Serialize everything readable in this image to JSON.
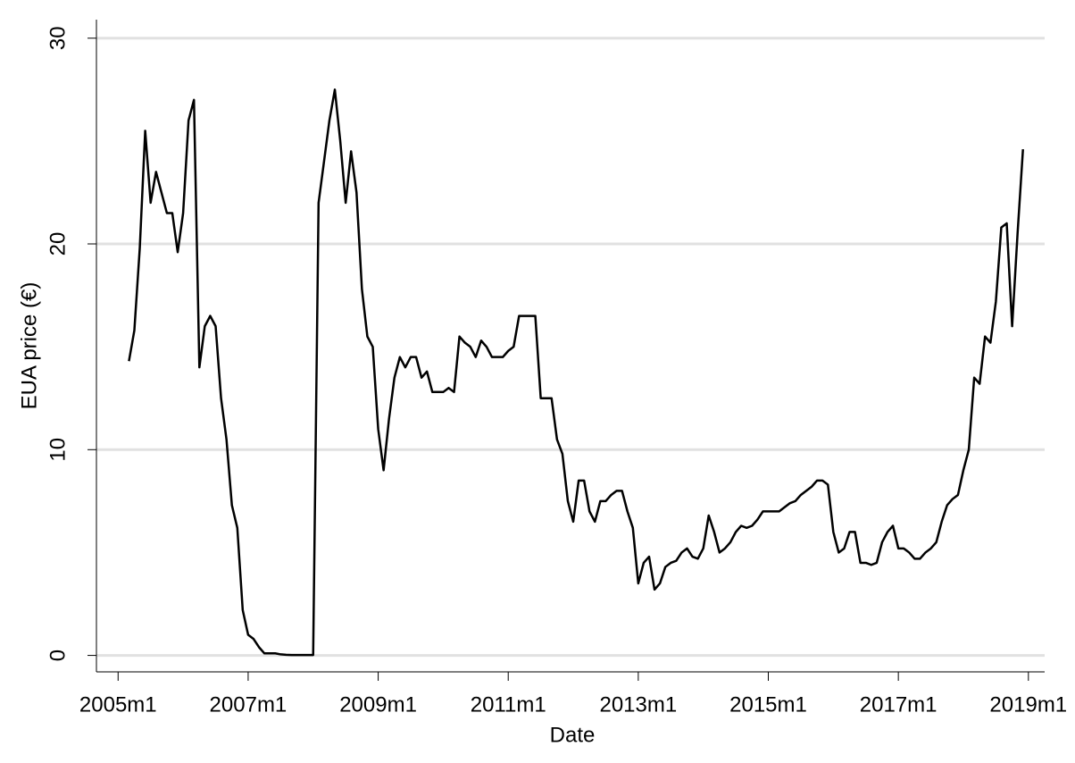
{
  "chart_data": {
    "type": "line",
    "x_label": "Date",
    "y_label": "EUA price (€)",
    "x": [
      542,
      543,
      544,
      545,
      546,
      547,
      548,
      549,
      550,
      551,
      552,
      553,
      554,
      555,
      556,
      557,
      558,
      559,
      560,
      561,
      562,
      563,
      564,
      565,
      566,
      567,
      568,
      569,
      570,
      571,
      572,
      573,
      574,
      575,
      576,
      577,
      578,
      579,
      580,
      581,
      582,
      583,
      584,
      585,
      586,
      587,
      588,
      589,
      590,
      591,
      592,
      593,
      594,
      595,
      596,
      597,
      598,
      599,
      600,
      601,
      602,
      603,
      604,
      605,
      606,
      607,
      608,
      609,
      610,
      611,
      612,
      613,
      614,
      615,
      616,
      617,
      618,
      619,
      620,
      621,
      622,
      623,
      624,
      625,
      626,
      627,
      628,
      629,
      630,
      631,
      632,
      633,
      634,
      635,
      636,
      637,
      638,
      639,
      640,
      641,
      642,
      643,
      644,
      645,
      646,
      647,
      648,
      649,
      650,
      651,
      652,
      653,
      654,
      655,
      656,
      657,
      658,
      659,
      660,
      661,
      662,
      663,
      664,
      665,
      666,
      667,
      668,
      669,
      670,
      671,
      672,
      673,
      674,
      675,
      676,
      677,
      678,
      679,
      680,
      681,
      682,
      683,
      684,
      685,
      686,
      687,
      688,
      689,
      690,
      691,
      692,
      693,
      694,
      695,
      696,
      697,
      698,
      699,
      700,
      701,
      702,
      703,
      704,
      705,
      706,
      707
    ],
    "series": [
      {
        "name": "EUA price",
        "color": "#000000",
        "values": [
          14.3,
          15.8,
          19.8,
          25.5,
          22,
          23.5,
          22.5,
          21.5,
          21.5,
          19.6,
          21.5,
          26,
          27,
          14,
          16,
          16.5,
          16,
          12.5,
          10.5,
          7.3,
          6.2,
          2.2,
          1.0,
          0.8,
          0.4,
          0.1,
          0.1,
          0.1,
          0.05,
          0.03,
          0.02,
          0.02,
          0.02,
          0.02,
          0.02,
          22,
          24,
          26,
          27.5,
          25,
          22,
          24.5,
          22.5,
          17.8,
          15.5,
          15,
          11,
          9,
          11.5,
          13.5,
          14.5,
          14,
          14.5,
          14.5,
          13.5,
          13.8,
          12.8,
          12.8,
          12.8,
          13,
          12.8,
          15.5,
          15.2,
          15,
          14.5,
          15.3,
          15,
          14.5,
          14.5,
          14.5,
          14.8,
          15,
          16.5,
          16.5,
          16.5,
          16.5,
          12.5,
          12.5,
          12.5,
          10.5,
          9.8,
          7.5,
          6.5,
          8.5,
          8.5,
          7,
          6.5,
          7.5,
          7.5,
          7.8,
          8,
          8,
          7,
          6.2,
          3.5,
          4.5,
          4.8,
          3.2,
          3.5,
          4.3,
          4.5,
          4.6,
          5.0,
          5.2,
          4.8,
          4.7,
          5.2,
          6.8,
          6.0,
          5.0,
          5.2,
          5.5,
          6.0,
          6.3,
          6.2,
          6.3,
          6.6,
          7.0,
          7.0,
          7.0,
          7.0,
          7.2,
          7.4,
          7.5,
          7.8,
          8.0,
          8.2,
          8.5,
          8.5,
          8.3,
          6.0,
          5.0,
          5.2,
          6.0,
          6.0,
          4.5,
          4.5,
          4.4,
          4.5,
          5.5,
          6.0,
          6.3,
          5.2,
          5.2,
          5.0,
          4.7,
          4.7,
          5.0,
          5.2,
          5.5,
          6.5,
          7.3,
          7.6,
          7.8,
          9.0,
          10,
          13.5,
          13.2,
          15.5,
          15.2,
          17.2,
          20.8,
          21,
          16,
          20.5,
          24.6
        ]
      }
    ],
    "xlim": [
      536,
      711
    ],
    "xticks": [
      {
        "value": 540,
        "label": "2005m1"
      },
      {
        "value": 564,
        "label": "2007m1"
      },
      {
        "value": 588,
        "label": "2009m1"
      },
      {
        "value": 612,
        "label": "2011m1"
      },
      {
        "value": 636,
        "label": "2013m1"
      },
      {
        "value": 660,
        "label": "2015m1"
      },
      {
        "value": 684,
        "label": "2017m1"
      },
      {
        "value": 708,
        "label": "2019m1"
      }
    ],
    "ylim": [
      -0.8,
      30.9
    ],
    "yticks": [
      0,
      10,
      20,
      30
    ],
    "grid": true
  }
}
